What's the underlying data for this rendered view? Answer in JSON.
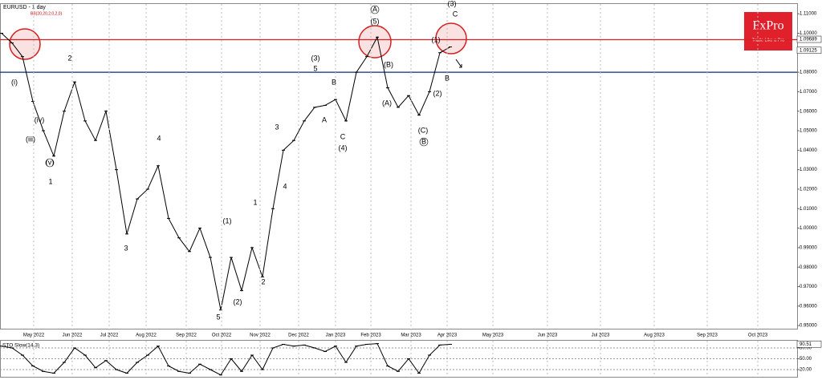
{
  "chart_data": [
    {
      "type": "line",
      "title": "EURUSD - 1 day",
      "subtitle": "BB(20,20,2,0,2,0)",
      "color": "#000000",
      "values": [
        1.1,
        1.095,
        1.088,
        1.065,
        1.05,
        1.037,
        1.06,
        1.075,
        1.055,
        1.045,
        1.06,
        1.03,
        0.997,
        1.015,
        1.02,
        1.032,
        1.005,
        0.995,
        0.988,
        1.0,
        0.985,
        0.958,
        0.985,
        0.968,
        0.99,
        0.975,
        1.01,
        1.04,
        1.045,
        1.055,
        1.062,
        1.063,
        1.066,
        1.055,
        1.08,
        1.088,
        1.098,
        1.072,
        1.062,
        1.068,
        1.058,
        1.07,
        1.09,
        1.093
      ],
      "ylim": [
        0.948,
        1.115
      ],
      "yticks": [
        {
          "value": 0.95,
          "label": "0.95000"
        },
        {
          "value": 0.96,
          "label": "0.96000"
        },
        {
          "value": 0.97,
          "label": "0.97000"
        },
        {
          "value": 0.98,
          "label": "0.98000"
        },
        {
          "value": 0.99,
          "label": "0.99000"
        },
        {
          "value": 1.0,
          "label": "1.00000"
        },
        {
          "value": 1.01,
          "label": "1.01000"
        },
        {
          "value": 1.02,
          "label": "1.02000"
        },
        {
          "value": 1.03,
          "label": "1.03000"
        },
        {
          "value": 1.04,
          "label": "1.04000"
        },
        {
          "value": 1.05,
          "label": "1.05000"
        },
        {
          "value": 1.06,
          "label": "1.06000"
        },
        {
          "value": 1.07,
          "label": "1.07000"
        },
        {
          "value": 1.08,
          "label": "1.08000"
        },
        {
          "value": 1.1,
          "label": "1.10000"
        },
        {
          "value": 1.11,
          "label": "1.11000"
        }
      ],
      "price_labels": [
        1.09689,
        1.09125
      ],
      "levels": [
        {
          "value": 1.0967,
          "color": "#d42020"
        },
        {
          "value": 1.08,
          "color": "#0a2a7a"
        }
      ],
      "x_tick_labels": [
        "May 2022",
        "Jun 2022",
        "Jul 2022",
        "Aug 2022",
        "Sep 2022",
        "Oct 2022",
        "Nov 2022",
        "Dec 2022",
        "Jan 2023",
        "Feb 2023",
        "Mar 2023",
        "Apr 2023",
        "May 2023",
        "Jun 2023",
        "Jul 2023",
        "Aug 2023",
        "Sep 2023",
        "Oct 2023"
      ],
      "annotations": [
        "(i)",
        "(iii)",
        "(v)",
        "1",
        "(iv)",
        "2",
        "3",
        "4",
        "5",
        "(1)",
        "(2)",
        "1",
        "2",
        "3",
        "4",
        "(3)",
        "5",
        "A",
        "B",
        "C",
        "(4)",
        "A",
        "(5)",
        "(B)",
        "(A)",
        "B",
        "(C)",
        "(1)",
        "(2)",
        "B",
        "(3)",
        "C"
      ],
      "logo": {
        "name": "FxPro",
        "tagline": "Trade Like a Pro"
      }
    },
    {
      "type": "line",
      "title": "STO Slow(14,3)",
      "color": "#000000",
      "values": [
        85,
        80,
        60,
        30,
        15,
        10,
        40,
        80,
        60,
        25,
        45,
        20,
        10,
        40,
        60,
        85,
        30,
        15,
        10,
        35,
        20,
        5,
        50,
        15,
        60,
        20,
        80,
        90,
        85,
        88,
        80,
        70,
        85,
        40,
        85,
        90,
        92,
        30,
        15,
        50,
        10,
        60,
        88,
        90
      ],
      "ylim": [
        0,
        100
      ],
      "yticks": [
        {
          "value": 20,
          "label": "20.00"
        },
        {
          "value": 50,
          "label": "50.00"
        },
        {
          "value": 80,
          "label": "80.00"
        }
      ],
      "price_labels": [
        90.51
      ]
    }
  ]
}
